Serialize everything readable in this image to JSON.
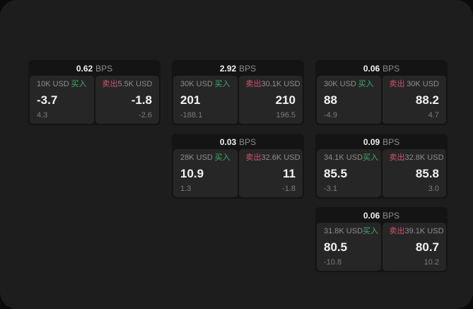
{
  "labels": {
    "bps_unit": "BPS",
    "buy": "买入",
    "sell": "卖出"
  },
  "theme": {
    "colors": {
      "outer_bg": "#0b0b0b",
      "surface_bg": "#1d1d1d",
      "card_bg": "#141414",
      "panel_bg": "#262626",
      "text_bright": "#f2f2f2",
      "text_gray": "#8d8d8d",
      "text_dim": "#7c7c7c",
      "buy_green": "#3fae6a",
      "sell_red": "#cf5468"
    }
  },
  "cards": [
    {
      "bps": "0.62",
      "buy": {
        "size": "10K USD",
        "value": "-3.7",
        "sub": "4.3"
      },
      "sell": {
        "size": "5.5K USD",
        "value": "-1.8",
        "sub": "-2.6"
      }
    },
    {
      "bps": "2.92",
      "buy": {
        "size": "30K USD",
        "value": "201",
        "sub": "-188.1"
      },
      "sell": {
        "size": "30.1K USD",
        "value": "210",
        "sub": "196.5"
      }
    },
    {
      "bps": "0.06",
      "buy": {
        "size": "30K USD",
        "value": "88",
        "sub": "-4.9"
      },
      "sell": {
        "size": "30K USD",
        "value": "88.2",
        "sub": "4.7"
      }
    },
    {
      "bps": "0.03",
      "buy": {
        "size": "28K USD",
        "value": "10.9",
        "sub": "1.3"
      },
      "sell": {
        "size": "32.6K USD",
        "value": "11",
        "sub": "-1.8"
      }
    },
    {
      "bps": "0.09",
      "buy": {
        "size": "34.1K USD",
        "value": "85.5",
        "sub": "-3.1"
      },
      "sell": {
        "size": "32.8K USD",
        "value": "85.8",
        "sub": "3.0"
      }
    },
    {
      "bps": "0.06",
      "buy": {
        "size": "31.8K USD",
        "value": "80.5",
        "sub": "-10.8"
      },
      "sell": {
        "size": "39.1K USD",
        "value": "80.7",
        "sub": "10.2"
      }
    }
  ]
}
